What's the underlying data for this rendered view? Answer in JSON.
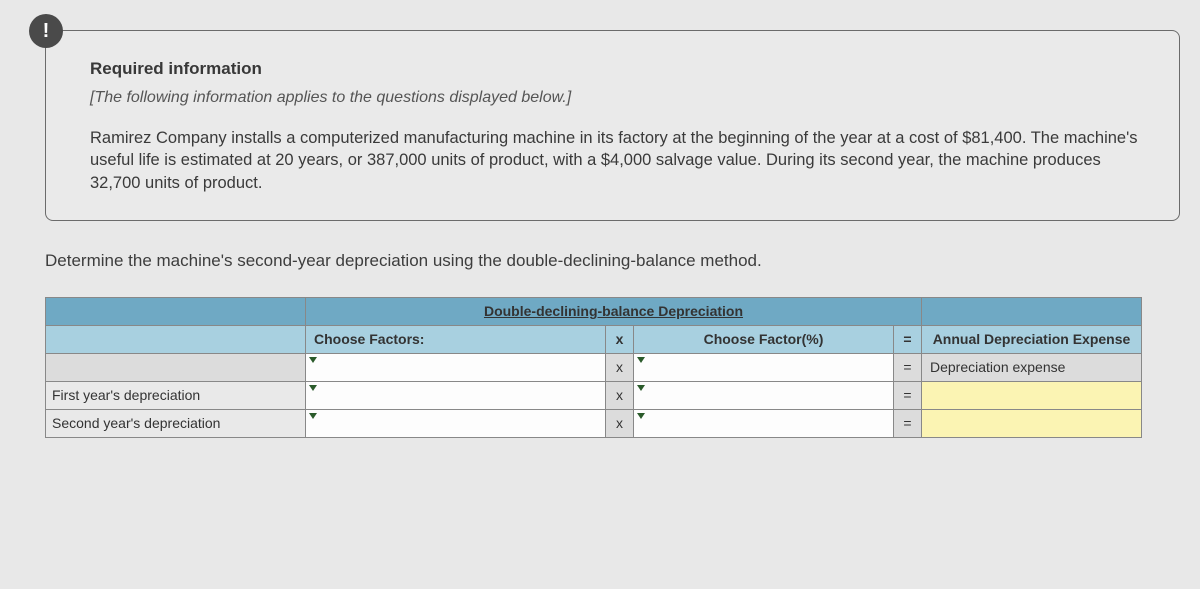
{
  "alert_glyph": "!",
  "info": {
    "required_title": "Required information",
    "intro": "[The following information applies to the questions displayed below.]",
    "body": "Ramirez Company installs a computerized manufacturing machine in its factory at the beginning of the year at a cost of $81,400. The machine's useful life is estimated at 20 years, or 387,000 units of product, with a $4,000 salvage value. During its second year, the machine produces 32,700 units of product."
  },
  "instruction": "Determine the machine's second-year depreciation using the double-declining-balance method.",
  "table": {
    "title": "Double-declining-balance Depreciation",
    "header": {
      "factors_label": "Choose Factors:",
      "mult": "x",
      "pct_label": "Choose Factor(%)",
      "eq": "=",
      "result_label": "Annual Depreciation Expense"
    },
    "rows": [
      {
        "label": "",
        "factor1": "",
        "mult": "x",
        "pct": "",
        "eq": "=",
        "result": "Depreciation expense",
        "result_class": "cell-gray"
      },
      {
        "label": "First year's depreciation",
        "factor1": "",
        "mult": "x",
        "pct": "",
        "eq": "=",
        "result": "",
        "result_class": "cell-yellow"
      },
      {
        "label": "Second year's depreciation",
        "factor1": "",
        "mult": "x",
        "pct": "",
        "eq": "=",
        "result": "",
        "result_class": "cell-yellow"
      }
    ],
    "colors": {
      "header_dark": "#6fa9c4",
      "header_light": "#a8d0e0",
      "yellow": "#fbf4b3",
      "gray": "#dcdcdc",
      "border": "#888888",
      "background": "#e8e8e8"
    }
  }
}
